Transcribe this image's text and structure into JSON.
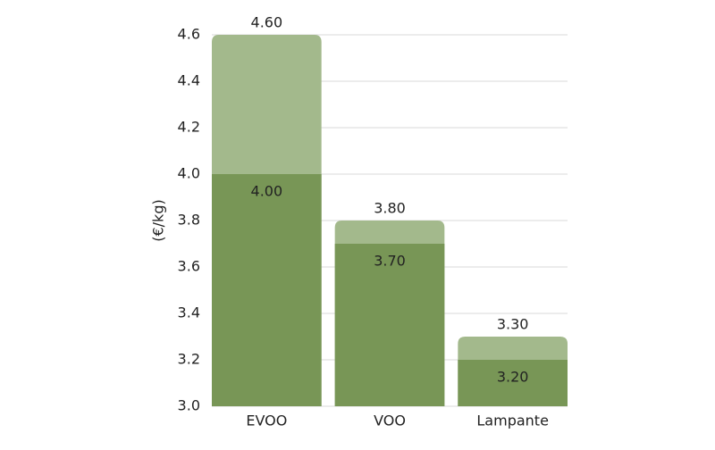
{
  "chart_data": {
    "type": "bar",
    "y_label": "(€/kg)",
    "categories": [
      "EVOO",
      "VOO",
      "Lampante"
    ],
    "series": [
      {
        "color": "#a3b98c",
        "values": [
          4.6,
          3.8,
          3.3
        ],
        "value_labels": [
          "4.60",
          "3.80",
          "3.30"
        ]
      },
      {
        "color": "#789656",
        "values": [
          4.0,
          3.7,
          3.2
        ],
        "value_labels": [
          "4.00",
          "3.70",
          "3.20"
        ]
      }
    ],
    "ylim": [
      3.0,
      4.6
    ],
    "yticks": [
      {
        "value": 3.0,
        "label": "3.0"
      },
      3.2,
      3.4,
      3.6,
      3.8,
      {
        "value": 4.0,
        "label": "4.0"
      },
      4.2,
      4.4,
      4.6
    ],
    "grid": true
  }
}
